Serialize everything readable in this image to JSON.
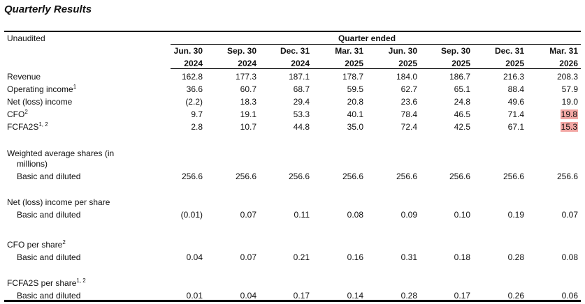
{
  "title": "Quarterly Results",
  "unaudited": "Unaudited",
  "quarter_ended": "Quarter ended",
  "columns": [
    {
      "month": "Jun. 30",
      "year": "2024"
    },
    {
      "month": "Sep. 30",
      "year": "2024"
    },
    {
      "month": "Dec. 31",
      "year": "2024"
    },
    {
      "month": "Mar. 31",
      "year": "2025"
    },
    {
      "month": "Jun. 30",
      "year": "2025"
    },
    {
      "month": "Sep. 30",
      "year": "2025"
    },
    {
      "month": "Dec. 31",
      "year": "2025"
    },
    {
      "month": "Mar. 31",
      "year": "2026"
    }
  ],
  "rows": [
    {
      "label": "Revenue",
      "sup": "",
      "values": [
        "162.8",
        "177.3",
        "187.1",
        "178.7",
        "184.0",
        "186.7",
        "216.3",
        "208.3"
      ]
    },
    {
      "label": "Operating income",
      "sup": "1",
      "values": [
        "36.6",
        "60.7",
        "68.7",
        "59.5",
        "62.7",
        "65.1",
        "88.4",
        "57.9"
      ]
    },
    {
      "label": "Net (loss) income",
      "sup": "",
      "values": [
        "(2.2)",
        "18.3",
        "29.4",
        "20.8",
        "23.6",
        "24.8",
        "49.6",
        "19.0"
      ]
    },
    {
      "label": "CFO",
      "sup": "2",
      "values": [
        "9.7",
        "19.1",
        "53.3",
        "40.1",
        "78.4",
        "46.5",
        "71.4",
        "19.8"
      ]
    },
    {
      "label": "FCFA2S",
      "sup": "1, 2",
      "values": [
        "2.8",
        "10.7",
        "44.8",
        "35.0",
        "72.4",
        "42.5",
        "67.1",
        "15.3"
      ]
    }
  ],
  "highlight_color": "#f2a7a4",
  "sections": [
    {
      "heading": "Weighted average shares (in",
      "heading2": "millions)",
      "sup": "",
      "sub_label": "Basic and diluted",
      "values": [
        "256.6",
        "256.6",
        "256.6",
        "256.6",
        "256.6",
        "256.6",
        "256.6",
        "256.6"
      ]
    },
    {
      "heading": "Net (loss) income per share",
      "sup": "",
      "sub_label": "Basic and diluted",
      "values": [
        "(0.01)",
        "0.07",
        "0.11",
        "0.08",
        "0.09",
        "0.10",
        "0.19",
        "0.07"
      ]
    },
    {
      "heading": "CFO per share",
      "sup": "2",
      "sub_label": "Basic and diluted",
      "values": [
        "0.04",
        "0.07",
        "0.21",
        "0.16",
        "0.31",
        "0.18",
        "0.28",
        "0.08"
      ]
    },
    {
      "heading": "FCFA2S per share",
      "sup": "1, 2",
      "sub_label": "Basic and diluted",
      "values": [
        "0.01",
        "0.04",
        "0.17",
        "0.14",
        "0.28",
        "0.17",
        "0.26",
        "0.06"
      ]
    }
  ]
}
